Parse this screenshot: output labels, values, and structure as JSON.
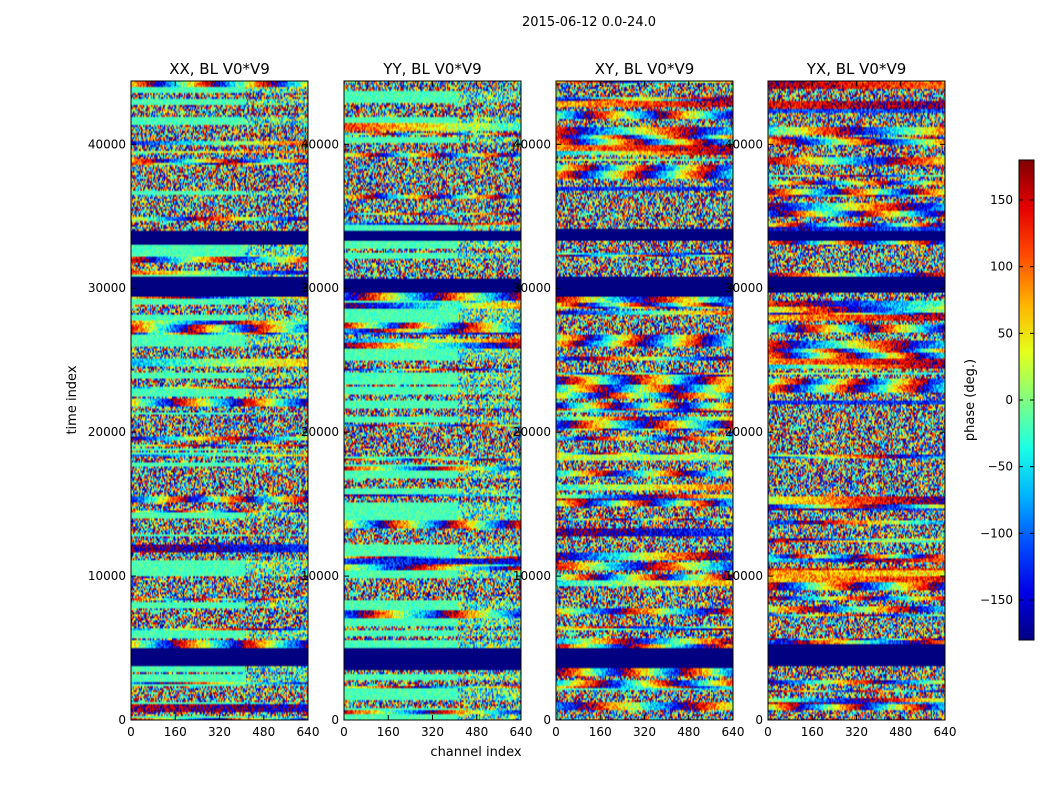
{
  "figure": {
    "suptitle": "2015-06-12 0.0-24.0"
  },
  "chart_data": {
    "type": "heatmap",
    "suptitle": "2015-06-12 0.0-24.0",
    "xlabel": "channel index",
    "ylabel": "time index",
    "xlim": [
      0,
      640
    ],
    "ylim": [
      0,
      44400
    ],
    "x_ticks": [
      0,
      160,
      320,
      480,
      640
    ],
    "y_ticks": [
      0,
      10000,
      20000,
      30000,
      40000
    ],
    "panels": [
      {
        "title": "XX, BL V0*V9",
        "product": "XX"
      },
      {
        "title": "YY, BL V0*V9",
        "product": "YY"
      },
      {
        "title": "XY, BL V0*V9",
        "product": "XY"
      },
      {
        "title": "YX, BL V0*V9",
        "product": "YX"
      }
    ],
    "colorbar": {
      "label": "phase (deg.)",
      "colormap": "jet",
      "vmin": -180,
      "vmax": 180,
      "ticks": [
        -150,
        -100,
        -50,
        0,
        50,
        100,
        150
      ]
    },
    "flagged_time_bands": [
      [
        3700,
        5100
      ],
      [
        29500,
        30800
      ],
      [
        33200,
        34000
      ]
    ]
  }
}
